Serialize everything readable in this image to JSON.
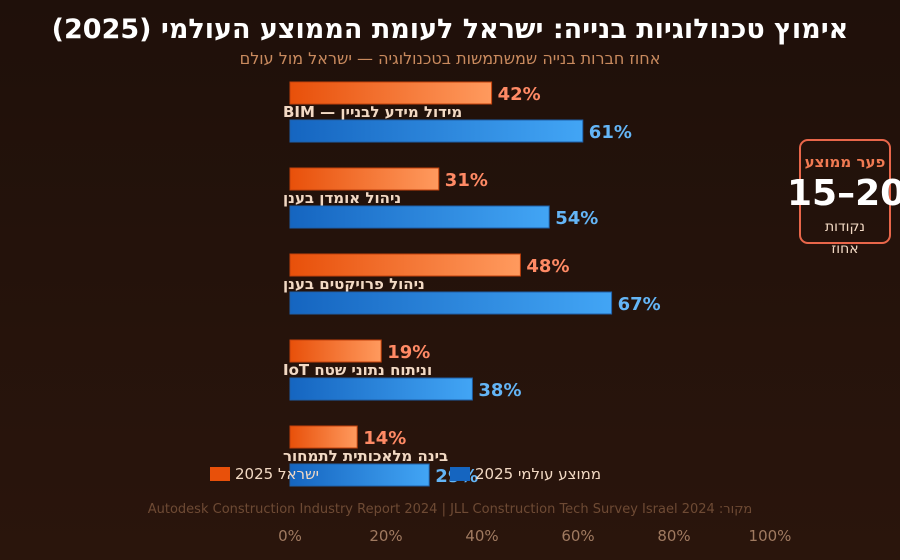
{
  "title": "אימוץ טכנולוגיות בנייה: ישראל לעומת הממוצע העולמי (2025)",
  "subtitle": "אחוז חברות בנייה שמשתמשות בטכנולוגיה — ישראל מול עולם",
  "gap": {
    "label": "פער ממוצע",
    "value": "15–20",
    "unit": "נקודות",
    "unit2": "אחוז"
  },
  "legend": {
    "israel": "ישראל 2025",
    "global": "ממוצע עולמי 2025"
  },
  "source": "מקור: Autodesk Construction Industry Report 2024 | JLL Construction Tech Survey Israel 2024",
  "colors": {
    "israel_start": "#e8500a",
    "israel_end": "#ff9a5e",
    "global_start": "#1565c0",
    "global_end": "#42a5f5",
    "israel_label": "#ff8a65",
    "global_label": "#64b5f6",
    "category_text": "#f2d9c4",
    "axis_text": "#a07a60"
  },
  "chart_data": {
    "type": "bar",
    "orientation": "horizontal",
    "categories": [
      "מידול מידע לבניין — BIM",
      "ניהול אומדן בענן",
      "ניהול פרויקטים בענן",
      "וניתוח נתוני שטח IoT",
      "בינה מלאכותית לתמחור"
    ],
    "series": [
      {
        "name": "ישראל 2025",
        "values": [
          42,
          31,
          48,
          19,
          14
        ]
      },
      {
        "name": "ממוצע עולמי 2025",
        "values": [
          61,
          54,
          67,
          38,
          29
        ]
      }
    ],
    "value_labels": [
      [
        "42%",
        "31%",
        "48%",
        "19%",
        "14%"
      ],
      [
        "61%",
        "54%",
        "67%",
        "38%",
        "29%"
      ]
    ],
    "xlim": [
      0,
      100
    ],
    "xticks": [
      "0%",
      "20%",
      "40%",
      "60%",
      "80%",
      "100%"
    ],
    "xtick_values": [
      0,
      20,
      40,
      60,
      80,
      100
    ],
    "grid": false,
    "legend_position": "bottom"
  }
}
